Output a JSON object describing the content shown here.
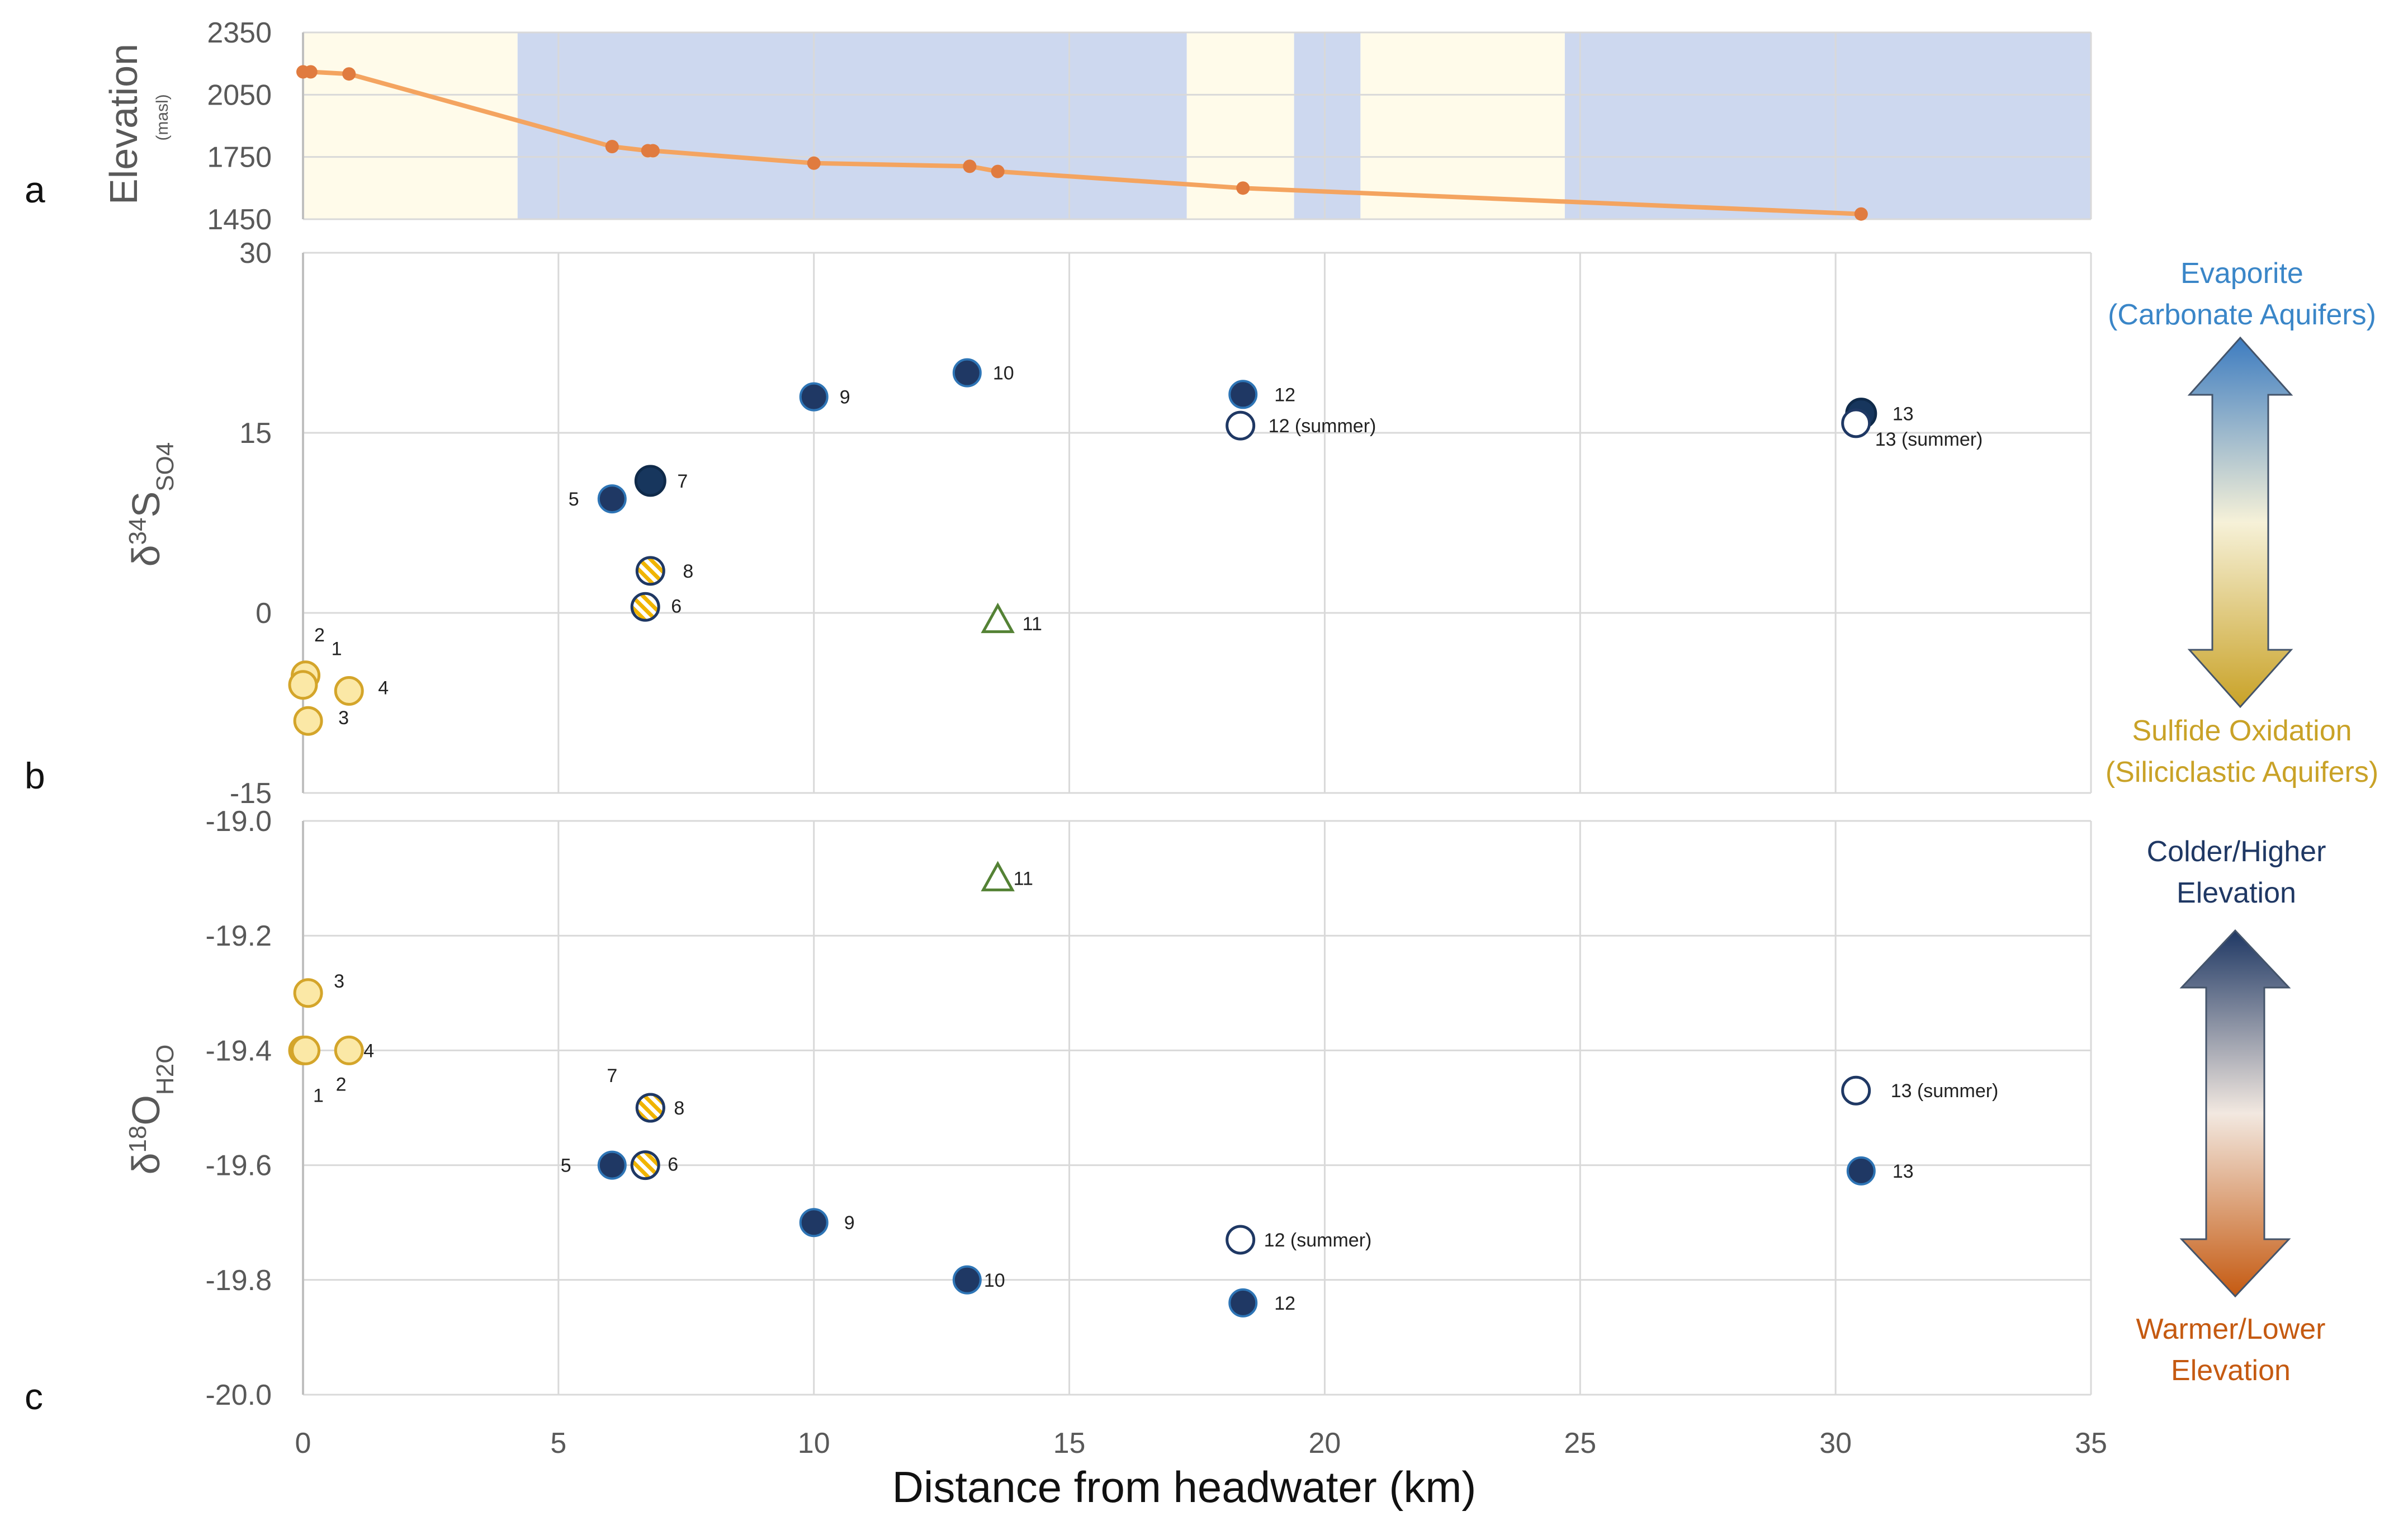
{
  "chart_data": [
    {
      "panel": "a",
      "type": "line",
      "ylabel": "Elevation",
      "ylabel_sub": "(masl)",
      "ylim": [
        1450,
        2350
      ],
      "yticks": [
        "1450",
        "1750",
        "2050",
        "2350"
      ],
      "xlim": [
        0,
        35
      ],
      "zones": [
        {
          "from": 0,
          "to": 4.2,
          "kind": "siliciclastic"
        },
        {
          "from": 4.2,
          "to": 17.3,
          "kind": "carbonate"
        },
        {
          "from": 17.3,
          "to": 19.4,
          "kind": "siliciclastic"
        },
        {
          "from": 19.4,
          "to": 20.7,
          "kind": "carbonate"
        },
        {
          "from": 20.7,
          "to": 24.7,
          "kind": "siliciclastic"
        },
        {
          "from": 24.7,
          "to": 35,
          "kind": "carbonate"
        }
      ],
      "series": [
        {
          "name": "elevation",
          "x": [
            0,
            0.15,
            0.9,
            6.05,
            6.75,
            6.85,
            10,
            13.05,
            13.6,
            18.4,
            30.5
          ],
          "y": [
            2160,
            2160,
            2150,
            1800,
            1780,
            1780,
            1720,
            1705,
            1680,
            1600,
            1475
          ]
        }
      ]
    },
    {
      "panel": "b",
      "type": "scatter",
      "ylabel": "δ34SSO4",
      "ylabel_parts": {
        "delta": "δ",
        "sup": "34",
        "main": "S",
        "sub": "SO4"
      },
      "ylim": [
        -15,
        30
      ],
      "yticks": [
        "-15",
        "0",
        "15",
        "30"
      ],
      "xlim": [
        0,
        35
      ],
      "points": [
        {
          "label": "1",
          "x": 0.05,
          "y": -5.2,
          "style": "yellow"
        },
        {
          "label": "2",
          "x": 0.0,
          "y": -6.0,
          "style": "yellow"
        },
        {
          "label": "3",
          "x": 0.1,
          "y": -9.0,
          "style": "yellow"
        },
        {
          "label": "4",
          "x": 0.9,
          "y": -6.5,
          "style": "yellow"
        },
        {
          "label": "5",
          "x": 6.05,
          "y": 9.5,
          "style": "navy"
        },
        {
          "label": "6",
          "x": 6.7,
          "y": 0.5,
          "style": "hatched"
        },
        {
          "label": "7",
          "x": 6.8,
          "y": 11.0,
          "style": "navy-dark"
        },
        {
          "label": "8",
          "x": 6.8,
          "y": 3.5,
          "style": "hatched"
        },
        {
          "label": "9",
          "x": 10.0,
          "y": 18.0,
          "style": "navy"
        },
        {
          "label": "10",
          "x": 13.0,
          "y": 20.0,
          "style": "navy"
        },
        {
          "label": "11",
          "x": 13.6,
          "y": -0.6,
          "style": "triangle"
        },
        {
          "label": "12",
          "x": 18.4,
          "y": 18.2,
          "style": "navy"
        },
        {
          "label": "12 (summer)",
          "x": 18.35,
          "y": 15.6,
          "style": "open"
        },
        {
          "label": "13",
          "x": 30.5,
          "y": 16.6,
          "style": "navy-dark"
        },
        {
          "label": "13 (summer)",
          "x": 30.4,
          "y": 15.8,
          "style": "open"
        }
      ]
    },
    {
      "panel": "c",
      "type": "scatter",
      "ylabel": "δ18OH2O",
      "ylabel_parts": {
        "delta": "δ",
        "sup": "18",
        "main": "O",
        "sub": "H2O"
      },
      "ylim": [
        -20.0,
        -19.0
      ],
      "yticks": [
        "-20.0",
        "-19.8",
        "-19.6",
        "-19.4",
        "-19.2",
        "-19.0"
      ],
      "xlim": [
        0,
        35
      ],
      "xticks": [
        "0",
        "5",
        "10",
        "15",
        "20",
        "25",
        "30",
        "35"
      ],
      "xlabel": "Distance from headwater (km)",
      "points": [
        {
          "label": "1",
          "x": 0.0,
          "y": -19.4,
          "style": "yellow"
        },
        {
          "label": "2",
          "x": 0.05,
          "y": -19.4,
          "style": "yellow"
        },
        {
          "label": "3",
          "x": 0.1,
          "y": -19.3,
          "style": "yellow"
        },
        {
          "label": "4",
          "x": 0.9,
          "y": -19.4,
          "style": "yellow"
        },
        {
          "label": "5",
          "x": 6.05,
          "y": -19.6,
          "style": "navy"
        },
        {
          "label": "6",
          "x": 6.7,
          "y": -19.6,
          "style": "hatched"
        },
        {
          "label": "7",
          "x": 6.8,
          "y": -19.5,
          "style": "hatched"
        },
        {
          "label": "8",
          "x": 6.8,
          "y": -19.5,
          "style": "hatched"
        },
        {
          "label": "9",
          "x": 10.0,
          "y": -19.7,
          "style": "navy"
        },
        {
          "label": "10",
          "x": 13.0,
          "y": -19.8,
          "style": "navy"
        },
        {
          "label": "11",
          "x": 13.6,
          "y": -19.1,
          "style": "triangle"
        },
        {
          "label": "12",
          "x": 18.4,
          "y": -19.84,
          "style": "navy"
        },
        {
          "label": "12 (summer)",
          "x": 18.35,
          "y": -19.73,
          "style": "open"
        },
        {
          "label": "13",
          "x": 30.5,
          "y": -19.61,
          "style": "navy"
        },
        {
          "label": "13 (summer)",
          "x": 30.4,
          "y": -19.47,
          "style": "open"
        }
      ]
    }
  ],
  "legend_b": {
    "top": [
      "Evaporite",
      "(Carbonate Aquifers)"
    ],
    "bottom": [
      "Sulfide Oxidation",
      "(Siliciclastic Aquifers)"
    ]
  },
  "legend_c": {
    "top": [
      "Colder/Higher",
      "Elevation"
    ],
    "bottom": [
      "Warmer/Lower",
      "Elevation"
    ]
  },
  "panel_letters": [
    "a",
    "b",
    "c"
  ],
  "colors": {
    "yellow_fill": "#fbe8a6",
    "yellow_stroke": "#d4a52a",
    "navy": "#1f3864",
    "navy_stroke": "#2e75b6",
    "triangle": "#548235",
    "line": "#f4a460",
    "line_dot": "#e07b3f",
    "zone_carbonate": "#cdd8ef",
    "zone_siliciclastic": "#fffbea",
    "grid": "#d9d9d9",
    "axis": "#bfbfbf",
    "legend_b_top": "#3a86c8",
    "legend_b_bottom": "#c9a227",
    "legend_c_top": "#1f3864",
    "legend_c_bottom": "#c55a11"
  }
}
